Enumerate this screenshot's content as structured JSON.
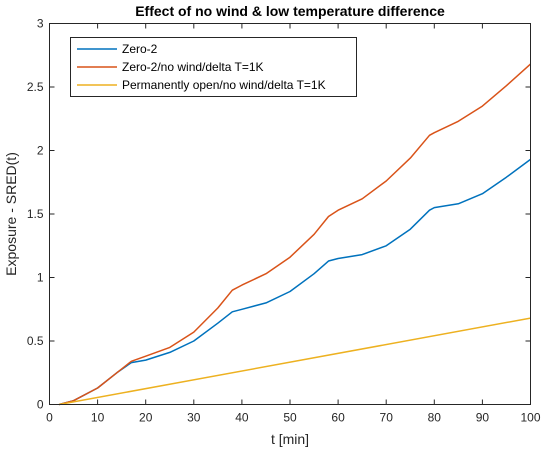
{
  "chart_data": {
    "type": "line",
    "title": "Effect of no wind & low temperature difference",
    "xlabel": "t [min]",
    "ylabel": "Exposure - SRED(t)",
    "xlim": [
      0,
      100
    ],
    "ylim": [
      0,
      3
    ],
    "xticks": [
      0,
      10,
      20,
      30,
      40,
      50,
      60,
      70,
      80,
      90,
      100
    ],
    "yticks": [
      0,
      0.5,
      1,
      1.5,
      2,
      2.5,
      3
    ],
    "x_tick_labels": [
      "0",
      "10",
      "20",
      "30",
      "40",
      "50",
      "60",
      "70",
      "80",
      "90",
      "100"
    ],
    "y_tick_labels": [
      "0",
      "0.5",
      "1",
      "1.5",
      "2",
      "2.5",
      "3"
    ],
    "grid": false,
    "legend_position": "top-left",
    "series": [
      {
        "name": "Zero-2",
        "color": "#0072BD",
        "x": [
          2,
          5,
          10,
          14,
          17,
          20,
          25,
          30,
          35,
          38,
          40,
          45,
          50,
          55,
          58,
          60,
          65,
          70,
          75,
          79,
          80,
          85,
          90,
          95,
          100
        ],
        "y": [
          0,
          0.03,
          0.13,
          0.25,
          0.33,
          0.35,
          0.41,
          0.5,
          0.64,
          0.73,
          0.75,
          0.8,
          0.89,
          1.03,
          1.13,
          1.15,
          1.18,
          1.25,
          1.38,
          1.53,
          1.55,
          1.58,
          1.66,
          1.79,
          1.93
        ]
      },
      {
        "name": "Zero-2/no wind/delta T=1K",
        "color": "#D95319",
        "x": [
          2,
          5,
          10,
          14,
          17,
          20,
          25,
          30,
          35,
          38,
          40,
          45,
          50,
          55,
          58,
          60,
          65,
          70,
          75,
          79,
          80,
          85,
          90,
          95,
          100
        ],
        "y": [
          0,
          0.03,
          0.13,
          0.25,
          0.34,
          0.38,
          0.45,
          0.57,
          0.76,
          0.9,
          0.94,
          1.03,
          1.16,
          1.34,
          1.48,
          1.53,
          1.62,
          1.76,
          1.94,
          2.12,
          2.14,
          2.23,
          2.35,
          2.51,
          2.68
        ]
      },
      {
        "name": "Permanently open/no wind/delta T=1K",
        "color": "#EDB120",
        "x": [
          2,
          100
        ],
        "y": [
          0,
          0.68
        ]
      }
    ]
  }
}
